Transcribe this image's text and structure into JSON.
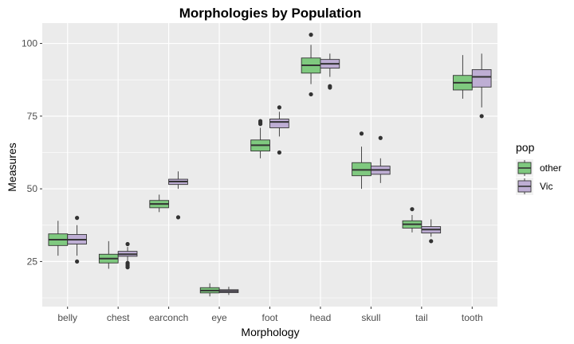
{
  "chart_data": {
    "type": "boxplot",
    "title": "Morphologies by Population",
    "xlabel": "Morphology",
    "ylabel": "Measures",
    "ylim": [
      9.5,
      107
    ],
    "yticks": [
      25,
      50,
      75,
      100
    ],
    "grid": true,
    "legend": {
      "title": "pop",
      "position": "right"
    },
    "categories": [
      "belly",
      "chest",
      "earconch",
      "eye",
      "foot",
      "head",
      "skull",
      "tail",
      "tooth"
    ],
    "series": [
      {
        "name": "other",
        "color": "#7fc97f",
        "boxes": [
          {
            "min": 27,
            "q1": 30.5,
            "median": 32.5,
            "q3": 34.5,
            "max": 39,
            "outliers": []
          },
          {
            "min": 22.5,
            "q1": 24.5,
            "median": 26,
            "q3": 27.5,
            "max": 32,
            "outliers": []
          },
          {
            "min": 42,
            "q1": 43.5,
            "median": 44.8,
            "q3": 46,
            "max": 48,
            "outliers": []
          },
          {
            "min": 13,
            "q1": 14.2,
            "median": 15,
            "q3": 16,
            "max": 17.5,
            "outliers": []
          },
          {
            "min": 60.5,
            "q1": 63,
            "median": 65,
            "q3": 66.8,
            "max": 71,
            "outliers": [
              72.3,
              72.8,
              73.3
            ]
          },
          {
            "min": 86,
            "q1": 89.8,
            "median": 92.5,
            "q3": 95,
            "max": 99.5,
            "outliers": [
              103,
              82.5
            ]
          },
          {
            "min": 50,
            "q1": 54.5,
            "median": 56.5,
            "q3": 59,
            "max": 64.5,
            "outliers": [
              69
            ]
          },
          {
            "min": 35,
            "q1": 36.5,
            "median": 37.8,
            "q3": 39,
            "max": 41,
            "outliers": [
              43
            ]
          },
          {
            "min": 81,
            "q1": 84,
            "median": 86.5,
            "q3": 89,
            "max": 96,
            "outliers": []
          }
        ]
      },
      {
        "name": "Vic",
        "color": "#beaed4",
        "boxes": [
          {
            "min": 27,
            "q1": 31,
            "median": 32.5,
            "q3": 34.3,
            "max": 37.5,
            "outliers": [
              40,
              25
            ]
          },
          {
            "min": 25,
            "q1": 26.8,
            "median": 27.5,
            "q3": 28.5,
            "max": 30,
            "outliers": [
              31,
              24.5,
              24,
              23.5,
              23
            ]
          },
          {
            "min": 50,
            "q1": 51.5,
            "median": 52.5,
            "q3": 53.3,
            "max": 56,
            "outliers": [
              40.2
            ]
          },
          {
            "min": 13.5,
            "q1": 14.3,
            "median": 14.8,
            "q3": 15.3,
            "max": 16.3,
            "outliers": []
          },
          {
            "min": 68,
            "q1": 71,
            "median": 73,
            "q3": 74,
            "max": 76.5,
            "outliers": [
              78,
              62.5
            ]
          },
          {
            "min": 88.5,
            "q1": 91.5,
            "median": 93,
            "q3": 94.5,
            "max": 96.5,
            "outliers": [
              85.3,
              84.8
            ]
          },
          {
            "min": 52,
            "q1": 55,
            "median": 56.5,
            "q3": 57.8,
            "max": 60.5,
            "outliers": [
              67.5
            ]
          },
          {
            "min": 33.5,
            "q1": 34.8,
            "median": 36,
            "q3": 37,
            "max": 39.5,
            "outliers": [
              32
            ]
          },
          {
            "min": 78,
            "q1": 85,
            "median": 88.5,
            "q3": 91,
            "max": 96.5,
            "outliers": [
              75
            ]
          }
        ]
      }
    ]
  }
}
